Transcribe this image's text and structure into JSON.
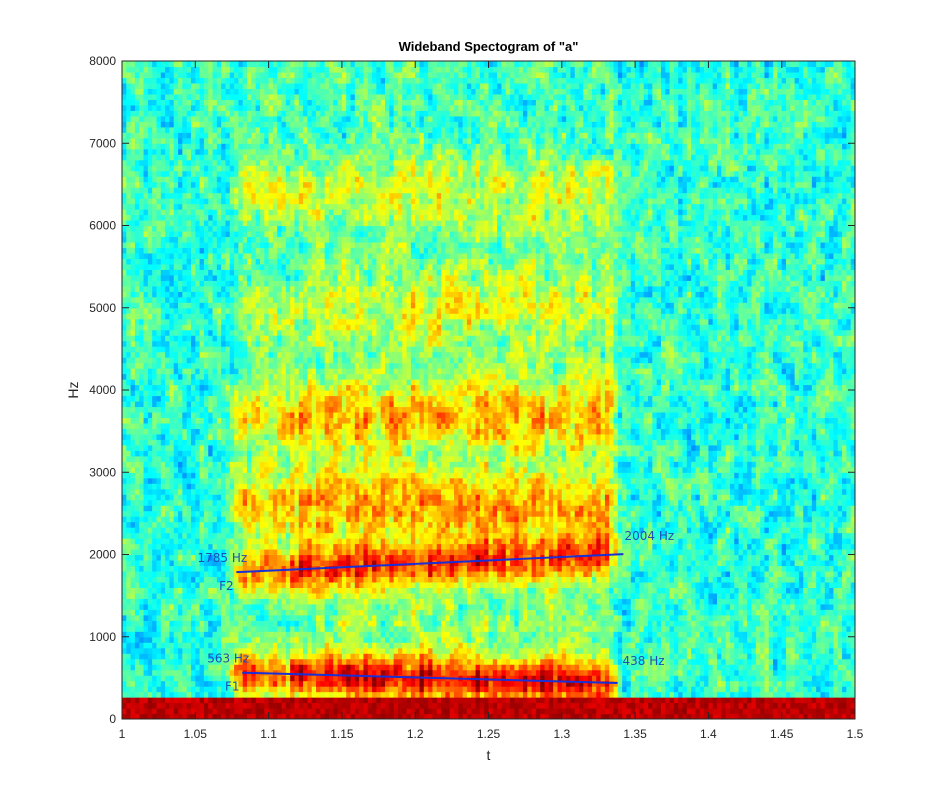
{
  "chart_data": {
    "type": "heatmap",
    "title": "Wideband Spectogram of \"a\"",
    "xlabel": "t",
    "ylabel": "Hz",
    "xlim": [
      1,
      1.5
    ],
    "ylim": [
      0,
      8000
    ],
    "xticks": [
      "1",
      "1.05",
      "1.1",
      "1.15",
      "1.2",
      "1.25",
      "1.3",
      "1.35",
      "1.4",
      "1.45",
      "1.5"
    ],
    "yticks": [
      "0",
      "1000",
      "2000",
      "3000",
      "4000",
      "5000",
      "6000",
      "7000",
      "8000"
    ],
    "colormap": "jet",
    "voiced_segment": {
      "start": 1.07,
      "end": 1.34
    },
    "formant_bands_hz": [
      {
        "center": 550,
        "strength": 1.0
      },
      {
        "center": 1850,
        "strength": 0.85
      },
      {
        "center": 2600,
        "strength": 0.6
      },
      {
        "center": 3700,
        "strength": 0.6
      },
      {
        "center": 5000,
        "strength": 0.35
      },
      {
        "center": 6400,
        "strength": 0.35
      }
    ],
    "formant_lines": [
      {
        "name": "F1",
        "x": [
          1.082,
          1.338
        ],
        "y": [
          563,
          438
        ],
        "start_label": "563 Hz",
        "end_label": "438 Hz",
        "color": "#1a2fd6"
      },
      {
        "name": "F2",
        "x": [
          1.078,
          1.342
        ],
        "y": [
          1785,
          2004
        ],
        "start_label": "1785 Hz",
        "end_label": "2004 Hz",
        "color": "#1a2fd6"
      }
    ],
    "annotation_color": "#1f4fb5"
  }
}
